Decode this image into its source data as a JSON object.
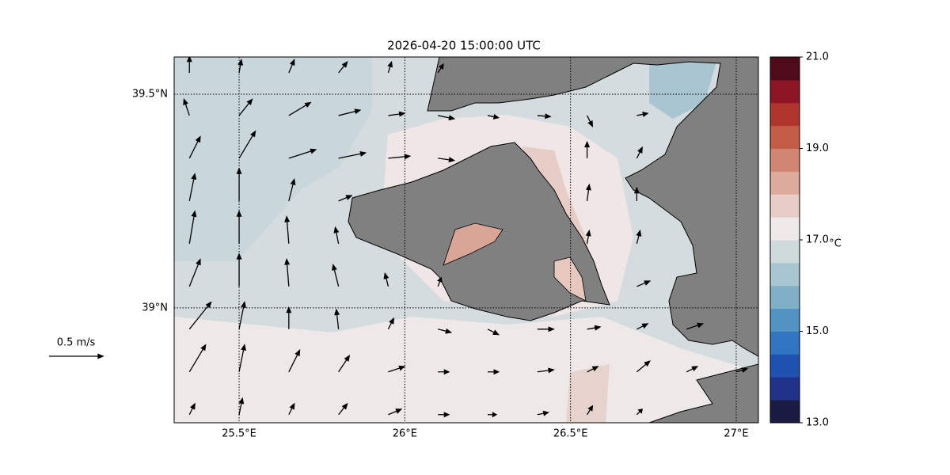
{
  "chart_data": {
    "type": "quiver",
    "title": "2026-04-20 15:00:00 UTC",
    "xlim": [
      25.304,
      27.067
    ],
    "ylim": [
      38.731,
      39.587
    ],
    "xticks": [
      {
        "value": 25.5,
        "label": "25.5°E"
      },
      {
        "value": 26,
        "label": "26°E"
      },
      {
        "value": 26.5,
        "label": "26.5°E"
      },
      {
        "value": 27,
        "label": "27°E"
      }
    ],
    "yticks": [
      {
        "value": 39,
        "label": "39°N"
      },
      {
        "value": 39.5,
        "label": "39.5°N"
      }
    ],
    "grid": true,
    "arrow_color": "#000000",
    "vectors": {
      "lon": [
        25.35,
        25.5,
        25.65,
        25.8,
        25.95,
        26.1,
        26.25,
        26.4,
        26.55,
        26.7,
        26.85,
        27.0
      ],
      "lat": [
        39.55,
        39.45,
        39.35,
        39.25,
        39.15,
        39.05,
        38.95,
        38.85,
        38.75
      ],
      "u": [
        [
          0.0,
          0.02,
          0.05,
          0.08,
          0.03,
          0.05,
          null,
          null,
          null,
          null,
          null,
          null
        ],
        [
          -0.05,
          0.12,
          0.2,
          0.2,
          0.15,
          0.15,
          0.1,
          0.12,
          0.05,
          0.1,
          null,
          null
        ],
        [
          0.1,
          0.15,
          0.25,
          0.25,
          0.2,
          0.15,
          null,
          null,
          0.0,
          0.05,
          null,
          null
        ],
        [
          0.05,
          0.0,
          0.05,
          0.12,
          null,
          null,
          null,
          null,
          0.02,
          0.0,
          null,
          null
        ],
        [
          0.05,
          0.0,
          -0.02,
          -0.03,
          null,
          null,
          null,
          null,
          0.02,
          0.03,
          null,
          null
        ],
        [
          0.1,
          0.0,
          -0.02,
          -0.05,
          -0.03,
          0.03,
          null,
          null,
          null,
          0.12,
          null,
          null
        ],
        [
          0.2,
          0.05,
          0.0,
          -0.02,
          0.05,
          0.12,
          0.1,
          0.15,
          0.12,
          0.1,
          0.15,
          null
        ],
        [
          0.15,
          0.05,
          0.1,
          0.1,
          0.15,
          0.1,
          0.1,
          0.15,
          0.1,
          0.12,
          0.1,
          0.1
        ],
        [
          0.05,
          0.03,
          0.05,
          0.08,
          0.12,
          0.1,
          0.08,
          0.1,
          0.05,
          0.05,
          null,
          null
        ]
      ],
      "v": [
        [
          0.15,
          0.12,
          0.12,
          0.1,
          0.1,
          0.08,
          null,
          null,
          null,
          null,
          null,
          null
        ],
        [
          0.15,
          0.15,
          0.12,
          0.05,
          0.02,
          -0.03,
          -0.02,
          -0.01,
          -0.1,
          0.02,
          null,
          null
        ],
        [
          0.2,
          0.25,
          0.08,
          0.05,
          0.02,
          -0.02,
          null,
          null,
          0.15,
          0.1,
          null,
          null
        ],
        [
          0.25,
          0.3,
          0.2,
          0.05,
          null,
          null,
          null,
          null,
          0.15,
          0.12,
          null,
          null
        ],
        [
          0.3,
          0.3,
          0.25,
          0.15,
          null,
          null,
          null,
          null,
          0.12,
          0.12,
          null,
          null
        ],
        [
          0.25,
          0.3,
          0.25,
          0.2,
          0.12,
          0.08,
          null,
          null,
          null,
          0.05,
          null,
          null
        ],
        [
          0.25,
          0.25,
          0.2,
          0.18,
          0.1,
          -0.03,
          -0.05,
          0.0,
          0.02,
          0.05,
          0.05,
          null
        ],
        [
          0.25,
          0.25,
          0.2,
          0.15,
          0.05,
          0.0,
          0.0,
          0.02,
          0.05,
          0.1,
          0.05,
          0.03
        ],
        [
          0.1,
          0.15,
          0.1,
          0.1,
          0.05,
          0.0,
          0.0,
          0.02,
          0.08,
          0.05,
          null,
          null
        ]
      ]
    },
    "quiver_key": {
      "value": 0.5,
      "label": "0.5 m/s"
    },
    "colorbar": {
      "label": "°C",
      "clim": [
        13,
        21
      ],
      "ticks": [
        {
          "value": 13,
          "label": "13.0"
        },
        {
          "value": 15,
          "label": "15.0"
        },
        {
          "value": 17,
          "label": "17.0"
        },
        {
          "value": 19,
          "label": "19.0"
        },
        {
          "value": 21,
          "label": "21.0"
        }
      ],
      "colors": [
        "#1a1b43",
        "#1f3288",
        "#1f52b0",
        "#2f75bf",
        "#5393c3",
        "#7fb0c6",
        "#a8c6cf",
        "#cfdadd",
        "#efe9ea",
        "#e6cdc5",
        "#dcab9c",
        "#d08670",
        "#c25c45",
        "#b0352c",
        "#8c1526",
        "#4f0b1a"
      ]
    }
  }
}
